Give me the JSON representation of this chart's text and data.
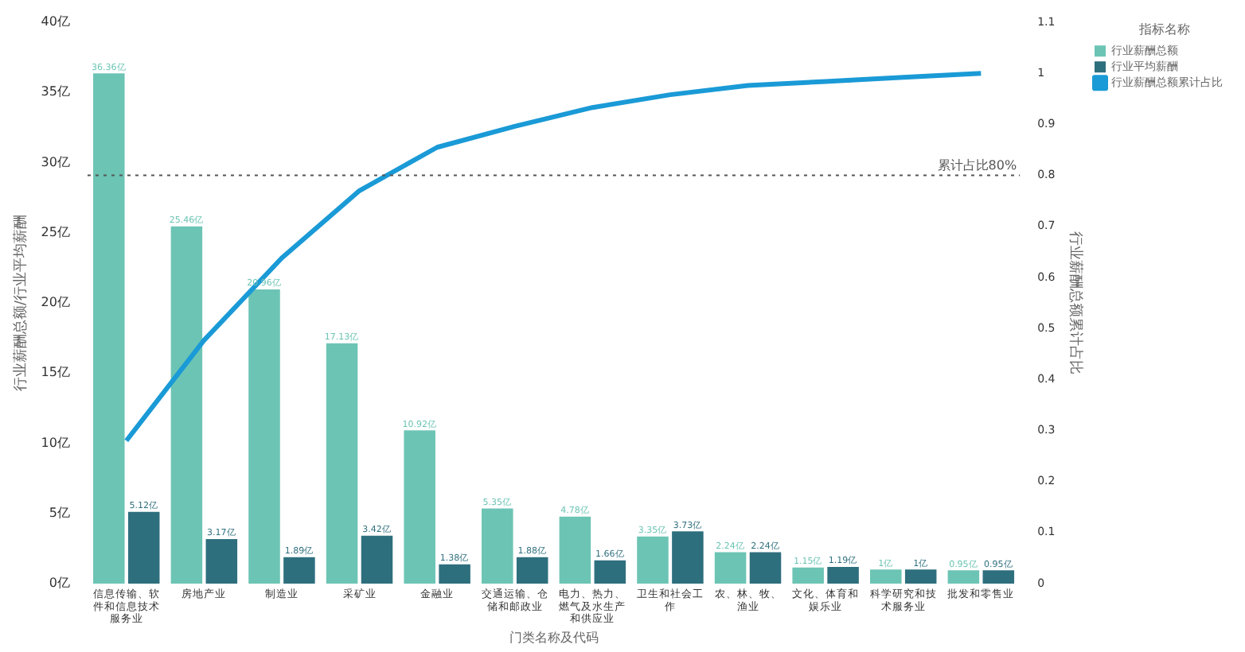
{
  "chart_data": {
    "type": "bar",
    "categories": [
      "信息传输、软件和信息技术服务业",
      "房地产业",
      "制造业",
      "采矿业",
      "金融业",
      "交通运输、仓储和邮政业",
      "电力、热力、燃气及水生产和供应业",
      "卫生和社会工作",
      "农、林、牧、渔业",
      "文化、体育和娱乐业",
      "科学研究和技术服务业",
      "批发和零售业"
    ],
    "series": [
      {
        "name": "行业薪酬总额",
        "color": "#6cc4b4",
        "values": [
          36.36,
          25.46,
          20.96,
          17.13,
          10.92,
          5.35,
          4.78,
          3.35,
          2.24,
          1.15,
          1,
          0.95
        ],
        "value_labels": [
          "36.36亿",
          "25.46亿",
          "20.96亿",
          "17.13亿",
          "10.92亿",
          "5.35亿",
          "4.78亿",
          "3.35亿",
          "2.24亿",
          "1.15亿",
          "1亿",
          "0.95亿"
        ]
      },
      {
        "name": "行业平均薪酬",
        "color": "#2e6f7e",
        "values": [
          5.12,
          3.17,
          1.89,
          3.42,
          1.38,
          1.88,
          1.66,
          3.73,
          2.24,
          1.19,
          1,
          0.95
        ],
        "value_labels": [
          "5.12亿",
          "3.17亿",
          "1.89亿",
          "3.42亿",
          "1.38亿",
          "1.88亿",
          "1.66亿",
          "3.73亿",
          "2.24亿",
          "1.19亿",
          "1亿",
          "0.95亿"
        ]
      },
      {
        "name": "行业薪酬总额累计占比",
        "type": "line",
        "axis": "y2",
        "color": "#1a9ad6",
        "values": [
          0.28,
          0.477,
          0.638,
          0.77,
          0.855,
          0.896,
          0.933,
          0.958,
          0.976,
          0.984,
          0.992,
          1.0
        ]
      }
    ],
    "xlabel": "门类名称及代码",
    "ylabel": "行业薪酬总额/行业平均薪酬",
    "y2label": "行业薪酬总额累计占比",
    "legend_title": "指标名称",
    "legend": "top right",
    "grid": false,
    "marker": "none",
    "ylim": [
      0,
      40
    ],
    "yticks": [
      {
        "value": 0,
        "label": "0亿"
      },
      {
        "value": 5,
        "label": "5亿"
      },
      {
        "value": 10,
        "label": "10亿"
      },
      {
        "value": 15,
        "label": "15亿"
      },
      {
        "value": 20,
        "label": "20亿"
      },
      {
        "value": 25,
        "label": "25亿"
      },
      {
        "value": 30,
        "label": "30亿"
      },
      {
        "value": 35,
        "label": "35亿"
      },
      {
        "value": 40,
        "label": "40亿"
      }
    ],
    "y2lim": [
      0,
      1.1
    ],
    "y2ticks": [
      0,
      0.1,
      0.2,
      0.3,
      0.4,
      0.5,
      0.6,
      0.7,
      0.8,
      0.9,
      1,
      1.1
    ],
    "ref_lines": [
      {
        "axis": "y2",
        "value": 0.8,
        "label": "累计占比80%",
        "color": "#555555",
        "line_style": "dotted"
      }
    ]
  }
}
